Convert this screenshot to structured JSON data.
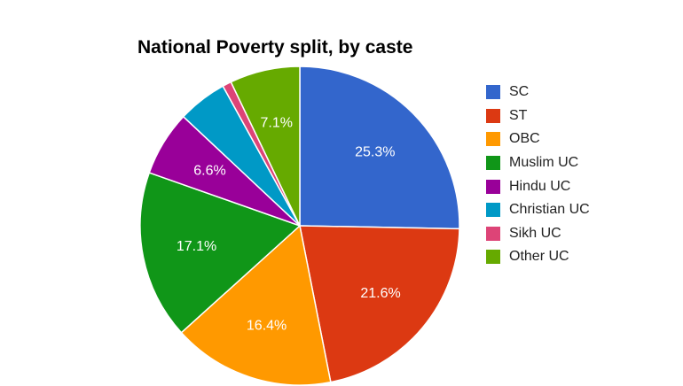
{
  "chart_data": {
    "type": "pie",
    "title": "National Poverty split, by caste",
    "legend_position": "right",
    "slices": [
      {
        "label": "SC",
        "value": 25.3,
        "value_label": "25.3%",
        "color": "#3366cc"
      },
      {
        "label": "ST",
        "value": 21.6,
        "value_label": "21.6%",
        "color": "#dc3912"
      },
      {
        "label": "OBC",
        "value": 16.4,
        "value_label": "16.4%",
        "color": "#ff9900"
      },
      {
        "label": "Muslim UC",
        "value": 17.1,
        "value_label": "17.1%",
        "color": "#109618"
      },
      {
        "label": "Hindu UC",
        "value": 6.6,
        "value_label": "6.6%",
        "color": "#990099"
      },
      {
        "label": "Christian UC",
        "value": 5.0,
        "value_label": "",
        "color": "#0099c6"
      },
      {
        "label": "Sikh UC",
        "value": 0.9,
        "value_label": "",
        "color": "#dd4477"
      },
      {
        "label": "Other UC",
        "value": 7.1,
        "value_label": "7.1%",
        "color": "#66aa00"
      }
    ]
  }
}
